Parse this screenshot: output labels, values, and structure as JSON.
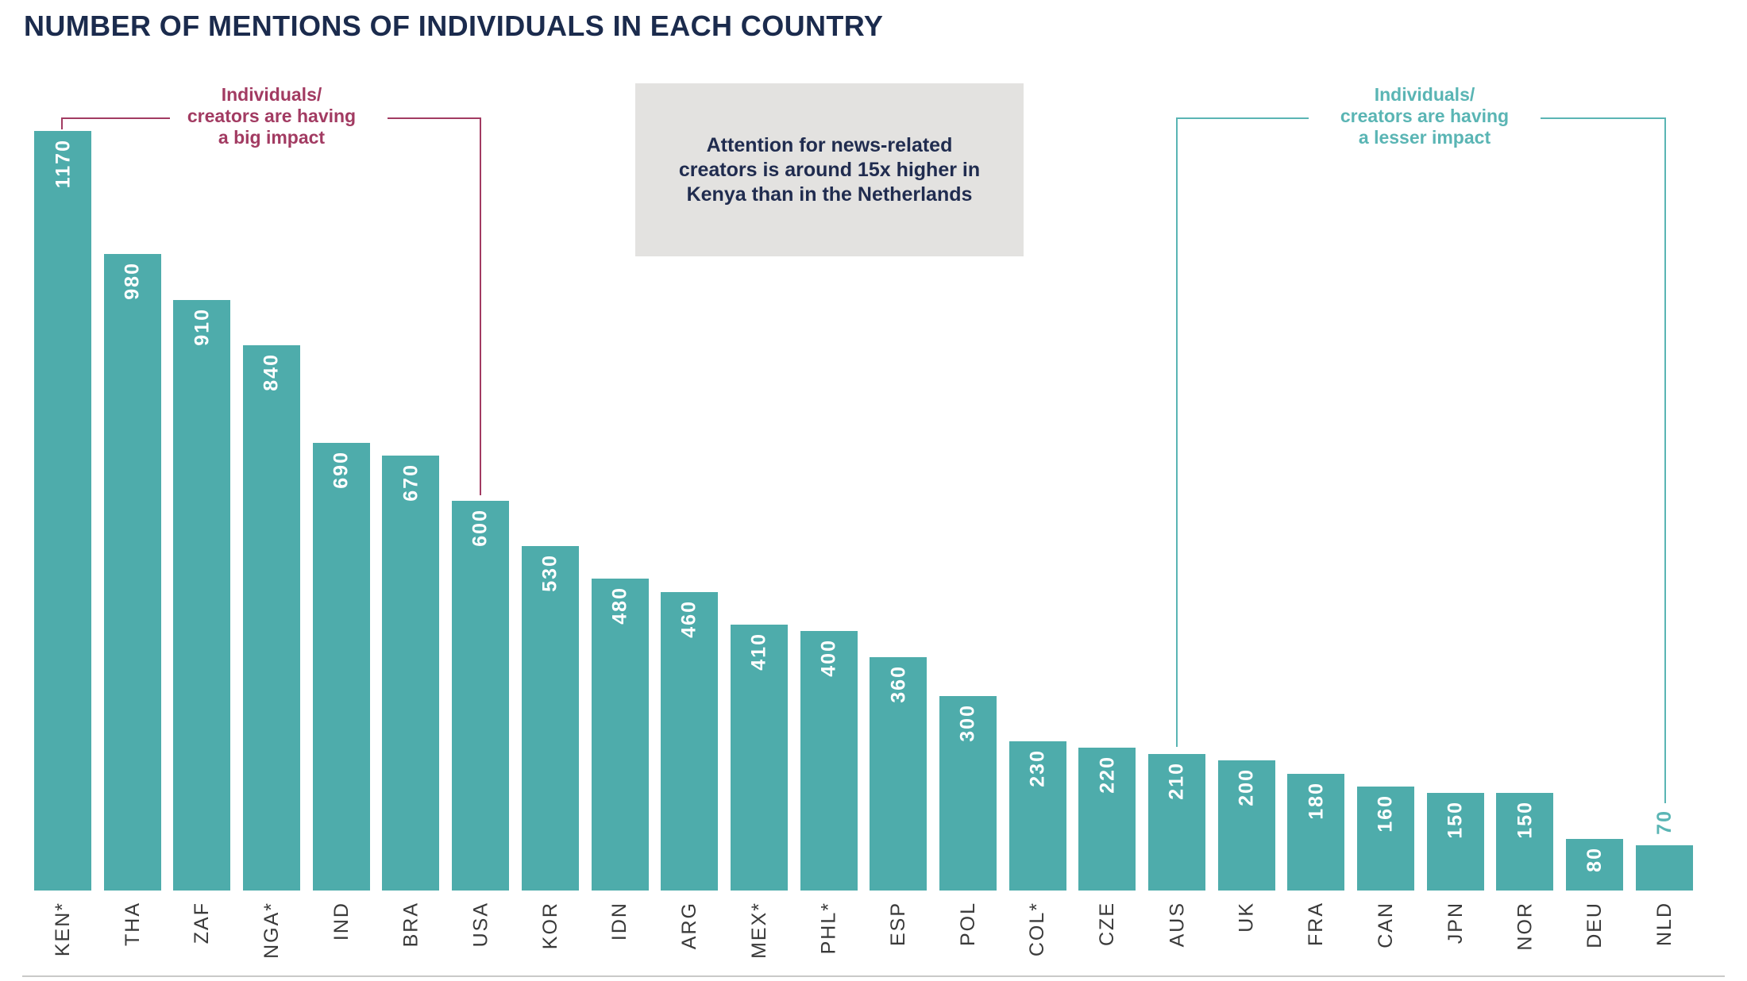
{
  "page": {
    "background": "#FFFFFF"
  },
  "title": "NUMBER OF MENTIONS OF INDIVIDUALS IN EACH COUNTRY",
  "callout_box": {
    "lines": [
      "Attention for news-related",
      "creators is around 15x higher in",
      "Kenya than in the Netherlands"
    ],
    "background": "#E3E2E0",
    "text_color": "#202C4F"
  },
  "annotations": {
    "big_impact": {
      "lines": [
        "Individuals/",
        "creators are having",
        "a big impact"
      ],
      "color": "#A23B62",
      "spans_from": "KEN*",
      "spans_to": "USA"
    },
    "lesser_impact": {
      "lines": [
        "Individuals/",
        "creators are having",
        "a lesser impact"
      ],
      "color": "#5AB5B4",
      "spans_from": "AUS",
      "spans_to": "NLD"
    }
  },
  "chart_data": {
    "type": "bar",
    "title": "NUMBER OF MENTIONS OF INDIVIDUALS IN EACH COUNTRY",
    "categories": [
      "KEN*",
      "THA",
      "ZAF",
      "NGA*",
      "IND",
      "BRA",
      "USA",
      "KOR",
      "IDN",
      "ARG",
      "MEX*",
      "PHL*",
      "ESP",
      "POL",
      "COL*",
      "CZE",
      "AUS",
      "UK",
      "FRA",
      "CAN",
      "JPN",
      "NOR",
      "DEU",
      "NLD"
    ],
    "values": [
      1170,
      980,
      910,
      840,
      690,
      670,
      600,
      530,
      480,
      460,
      410,
      400,
      360,
      300,
      230,
      220,
      210,
      200,
      180,
      160,
      150,
      150,
      80,
      70
    ],
    "bar_color": "#4EACAB",
    "value_label_color": "#FFFFFF",
    "outside_label_color": "#5AB5B4",
    "outside_label_categories": [
      "NLD"
    ],
    "xlabel": "",
    "ylabel": "",
    "ylim": [
      0,
      1170
    ],
    "grid": false,
    "legend": "none",
    "value_labels_rotated": "bottom-to-top",
    "category_labels_rotated": "bottom-to-top"
  }
}
